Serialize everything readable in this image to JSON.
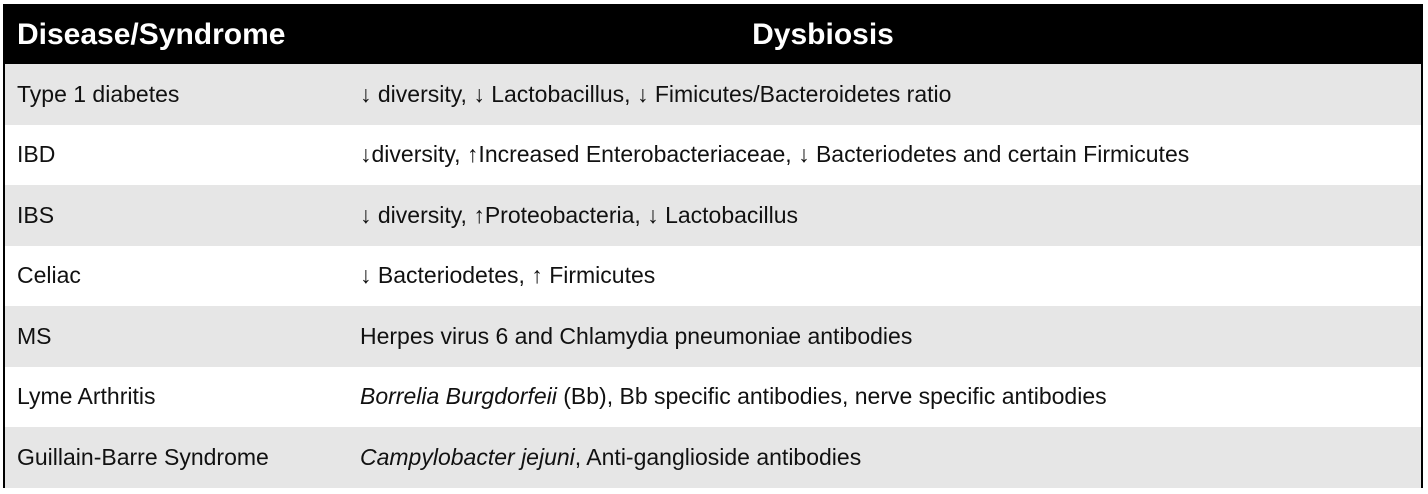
{
  "table": {
    "headers": [
      "Disease/Syndrome",
      "Dysbiosis"
    ],
    "rows": [
      {
        "disease": "Type 1 diabetes",
        "dysbiosis_italic": "",
        "dysbiosis": "↓ diversity, ↓ Lactobacillus, ↓ Fimicutes/Bacteroidetes ratio"
      },
      {
        "disease": "IBD",
        "dysbiosis_italic": "",
        "dysbiosis": "↓diversity, ↑Increased Enterobacteriaceae, ↓ Bacteriodetes and certain Firmicutes"
      },
      {
        "disease": "IBS",
        "dysbiosis_italic": "",
        "dysbiosis": "↓ diversity, ↑Proteobacteria, ↓ Lactobacillus"
      },
      {
        "disease": "Celiac",
        "dysbiosis_italic": "",
        "dysbiosis": "↓ Bacteriodetes, ↑ Firmicutes"
      },
      {
        "disease": "MS",
        "dysbiosis_italic": "",
        "dysbiosis": "Herpes virus 6 and Chlamydia pneumoniae antibodies"
      },
      {
        "disease": "Lyme Arthritis",
        "dysbiosis_italic": "Borrelia Burgdorfeii",
        "dysbiosis": " (Bb), Bb specific antibodies, nerve specific antibodies"
      },
      {
        "disease": "Guillain-Barre Syndrome",
        "dysbiosis_italic": "Campylobacter jejuni",
        "dysbiosis": ", Anti-ganglioside antibodies"
      }
    ]
  }
}
